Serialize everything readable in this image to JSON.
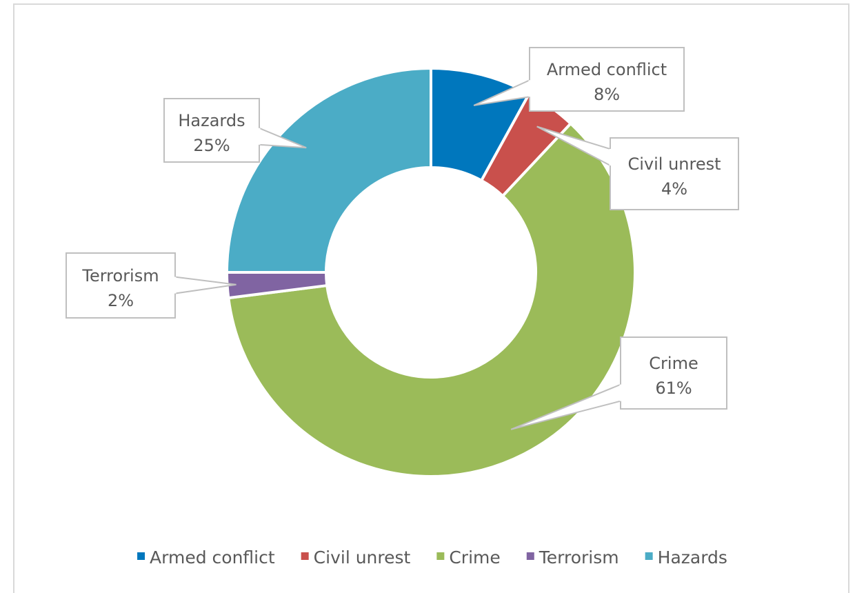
{
  "chart_data": {
    "type": "pie",
    "variant": "doughnut",
    "categories": [
      "Armed conflict",
      "Civil unrest",
      "Crime",
      "Terrorism",
      "Hazards"
    ],
    "values": [
      8,
      4,
      61,
      2,
      25
    ],
    "value_labels": [
      "8%",
      "4%",
      "61%",
      "2%",
      "25%"
    ],
    "colors": [
      "#0077BD",
      "#C9504C",
      "#9BBB59",
      "#8064A2",
      "#4BACC6"
    ],
    "legend": {
      "position": "bottom"
    }
  }
}
